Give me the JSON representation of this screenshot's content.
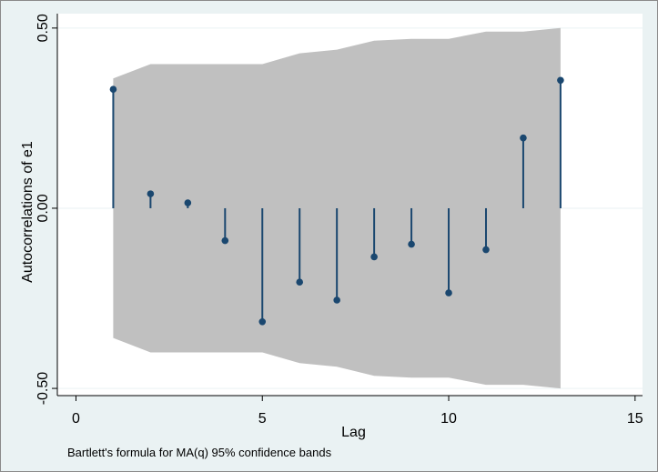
{
  "chart_data": {
    "type": "stem",
    "xlabel": "Lag",
    "ylabel": "Autocorrelations of e1",
    "note": "Bartlett's formula for MA(q) 95% confidence bands",
    "xlim": [
      -0.5,
      15.2
    ],
    "ylim": [
      -0.52,
      0.54
    ],
    "x_ticks": [
      0,
      5,
      10,
      15
    ],
    "y_ticks": [
      -0.5,
      0.0,
      0.5
    ],
    "y_tick_labels": [
      "-0.50",
      "0.00",
      "0.50"
    ],
    "grid": "horizontal",
    "lags": [
      1,
      2,
      3,
      4,
      5,
      6,
      7,
      8,
      9,
      10,
      11,
      12,
      13
    ],
    "autocorrelations": [
      0.33,
      0.04,
      0.015,
      -0.09,
      -0.315,
      -0.205,
      -0.255,
      -0.135,
      -0.1,
      -0.235,
      -0.115,
      0.195,
      0.355
    ],
    "confidence_band": [
      0.36,
      0.4,
      0.4,
      0.4,
      0.4,
      0.43,
      0.44,
      0.465,
      0.47,
      0.47,
      0.49,
      0.49,
      0.5
    ],
    "colors": {
      "marker": "#1a476f",
      "band": "#c0c0c0",
      "background": "#eaf2f3",
      "plot_area": "#ffffff",
      "grid": "#eaf2f3"
    }
  }
}
